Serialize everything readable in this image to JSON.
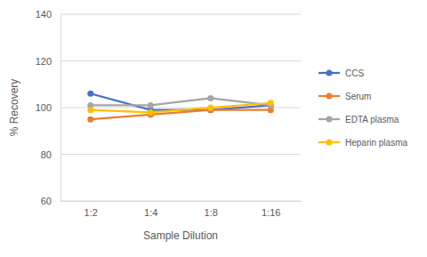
{
  "chart_data": {
    "type": "line",
    "x_label": "Sample Dilution",
    "y_label": "% Recovery",
    "categories": [
      "1:2",
      "1:4",
      "1:8",
      "1:16"
    ],
    "series": [
      {
        "name": "CCS",
        "color": "#4472c4",
        "values": [
          106,
          99,
          99,
          101
        ]
      },
      {
        "name": "Serum",
        "color": "#ed7d31",
        "values": [
          95,
          97,
          99,
          99
        ]
      },
      {
        "name": "EDTA plasma",
        "color": "#a5a5a5",
        "values": [
          101,
          101,
          104,
          101
        ]
      },
      {
        "name": "Heparin plasma",
        "color": "#ffc000",
        "values": [
          99,
          98,
          100,
          102
        ]
      }
    ],
    "ylim": [
      60,
      140
    ],
    "yticks": [
      60,
      80,
      100,
      120,
      140
    ],
    "grid": true,
    "legend": "right",
    "marker": "circle"
  }
}
